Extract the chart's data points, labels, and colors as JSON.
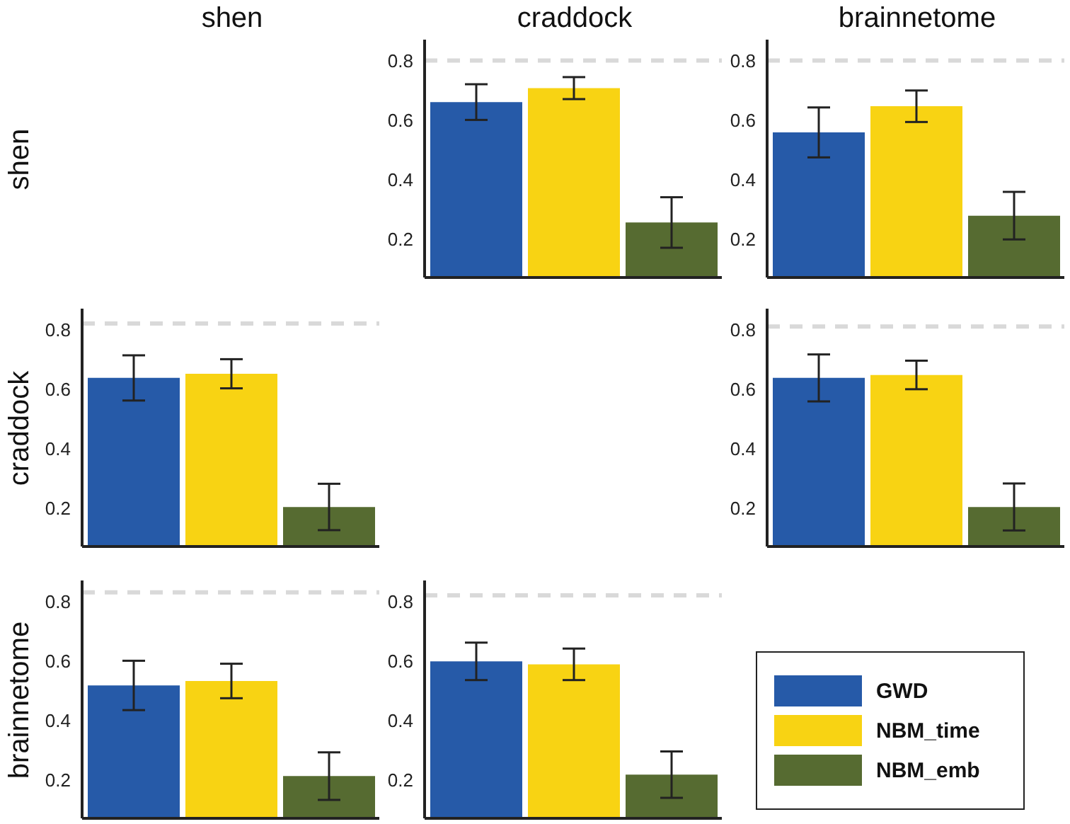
{
  "chart_data": [
    {
      "type": "bar",
      "title": "craddock",
      "ylabel": "shen",
      "categories": [
        null
      ],
      "ylim": [
        0.07,
        0.87
      ],
      "yticks": [
        0.2,
        0.4,
        0.6,
        0.8
      ],
      "tick_labels": "y",
      "grid": false,
      "legend": false,
      "ref_lines": [
        {
          "axis": "y",
          "value": 0.8,
          "color": "#d9d9d9",
          "line_style": "dashed"
        }
      ],
      "series": [
        {
          "color": "#265aa8",
          "values": [
            0.66
          ],
          "errors": [
            0.06
          ]
        },
        {
          "color": "#f8d313",
          "values": [
            0.707
          ],
          "errors": [
            0.037
          ]
        },
        {
          "color": "#566b31",
          "values": [
            0.255
          ],
          "errors": [
            0.085
          ]
        }
      ]
    },
    {
      "type": "bar",
      "title": "brainnetome",
      "categories": [
        null
      ],
      "ylim": [
        0.07,
        0.87
      ],
      "yticks": [
        0.2,
        0.4,
        0.6,
        0.8
      ],
      "tick_labels": "y",
      "grid": false,
      "legend": false,
      "ref_lines": [
        {
          "axis": "y",
          "value": 0.8,
          "color": "#d9d9d9",
          "line_style": "dashed"
        }
      ],
      "series": [
        {
          "color": "#265aa8",
          "values": [
            0.558
          ],
          "errors": [
            0.084
          ]
        },
        {
          "color": "#f8d313",
          "values": [
            0.646
          ],
          "errors": [
            0.053
          ]
        },
        {
          "color": "#566b31",
          "values": [
            0.278
          ],
          "errors": [
            0.08
          ]
        }
      ]
    },
    {
      "type": "bar",
      "title": "shen",
      "ylabel": "craddock",
      "categories": [
        null
      ],
      "ylim": [
        0.07,
        0.87
      ],
      "yticks": [
        0.2,
        0.4,
        0.6,
        0.8
      ],
      "tick_labels": "y",
      "grid": false,
      "legend": false,
      "ref_lines": [
        {
          "axis": "y",
          "value": 0.82,
          "color": "#d9d9d9",
          "line_style": "dashed"
        }
      ],
      "series": [
        {
          "color": "#265aa8",
          "values": [
            0.637
          ],
          "errors": [
            0.076
          ]
        },
        {
          "color": "#f8d313",
          "values": [
            0.651
          ],
          "errors": [
            0.049
          ]
        },
        {
          "color": "#566b31",
          "values": [
            0.203
          ],
          "errors": [
            0.078
          ]
        }
      ]
    },
    {
      "type": "bar",
      "categories": [
        null
      ],
      "ylim": [
        0.07,
        0.87
      ],
      "yticks": [
        0.2,
        0.4,
        0.6,
        0.8
      ],
      "tick_labels": "y",
      "grid": false,
      "legend": false,
      "ref_lines": [
        {
          "axis": "y",
          "value": 0.81,
          "color": "#d9d9d9",
          "line_style": "dashed"
        }
      ],
      "series": [
        {
          "color": "#265aa8",
          "values": [
            0.637
          ],
          "errors": [
            0.079
          ]
        },
        {
          "color": "#f8d313",
          "values": [
            0.647
          ],
          "errors": [
            0.048
          ]
        },
        {
          "color": "#566b31",
          "values": [
            0.203
          ],
          "errors": [
            0.079
          ]
        }
      ]
    },
    {
      "type": "bar",
      "ylabel": "brainnetome",
      "categories": [
        null
      ],
      "ylim": [
        0.07,
        0.87
      ],
      "yticks": [
        0.2,
        0.4,
        0.6,
        0.8
      ],
      "tick_labels": "y",
      "grid": false,
      "legend": false,
      "ref_lines": [
        {
          "axis": "y",
          "value": 0.83,
          "color": "#d9d9d9",
          "line_style": "dashed"
        }
      ],
      "series": [
        {
          "color": "#265aa8",
          "values": [
            0.517
          ],
          "errors": [
            0.083
          ]
        },
        {
          "color": "#f8d313",
          "values": [
            0.532
          ],
          "errors": [
            0.058
          ]
        },
        {
          "color": "#566b31",
          "values": [
            0.212
          ],
          "errors": [
            0.08
          ]
        }
      ]
    },
    {
      "type": "bar",
      "categories": [
        null
      ],
      "ylim": [
        0.07,
        0.87
      ],
      "yticks": [
        0.2,
        0.4,
        0.6,
        0.8
      ],
      "tick_labels": "y",
      "grid": false,
      "legend": "right",
      "ref_lines": [
        {
          "axis": "y",
          "value": 0.82,
          "color": "#d9d9d9",
          "line_style": "dashed"
        }
      ],
      "series": [
        {
          "name": "GWD",
          "color": "#265aa8",
          "values": [
            0.598
          ],
          "errors": [
            0.063
          ]
        },
        {
          "name": "NBM_time",
          "color": "#f8d313",
          "values": [
            0.588
          ],
          "errors": [
            0.053
          ]
        },
        {
          "name": "NBM_emb",
          "color": "#566b31",
          "values": [
            0.217
          ],
          "errors": [
            0.078
          ]
        }
      ]
    }
  ]
}
